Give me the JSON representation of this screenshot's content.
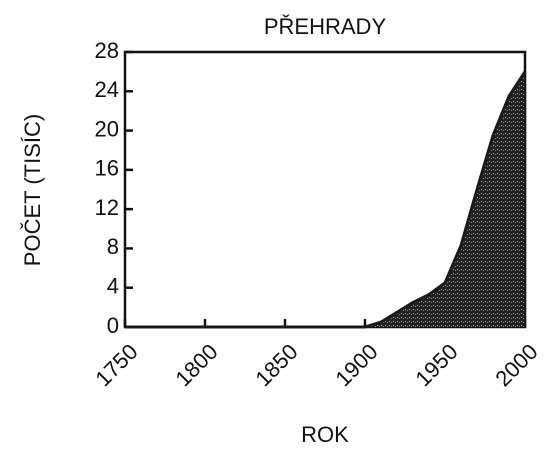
{
  "chart_data": {
    "type": "area",
    "title": "PŘEHRADY",
    "x_label": "ROK",
    "y_label": "POČET (TISÍC)",
    "x": [
      1750,
      1900,
      1910,
      1920,
      1930,
      1940,
      1950,
      1960,
      1970,
      1980,
      1990,
      2000
    ],
    "series": [
      {
        "values": [
          0,
          0,
          0.5,
          1.5,
          2.5,
          3.3,
          4.5,
          8.3,
          14,
          19.5,
          23.5,
          26
        ],
        "color": "#1a1a1a"
      }
    ],
    "xlim": [
      1750,
      2000
    ],
    "xticks": [
      1750,
      1800,
      1850,
      1900,
      1950,
      2000
    ],
    "ylim": [
      0,
      28
    ],
    "yticks": [
      0,
      4,
      8,
      12,
      16,
      20,
      24,
      28
    ]
  }
}
